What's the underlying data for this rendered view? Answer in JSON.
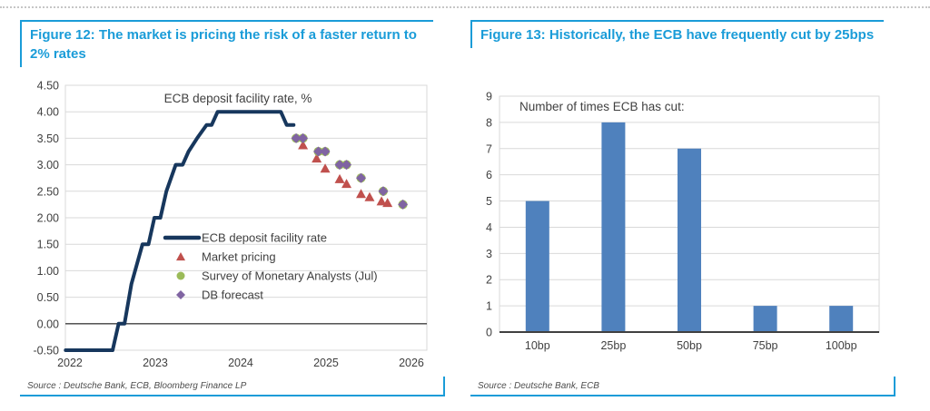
{
  "figure12": {
    "title": "Figure 12: The market is pricing the risk of a faster return to 2% rates",
    "source": "Source : Deutsche Bank, ECB, Bloomberg Finance LP"
  },
  "figure13": {
    "title": "Figure 13: Historically, the ECB have frequently cut by 25bps",
    "source": "Source : Deutsche Bank, ECB"
  },
  "colors": {
    "accent_blue": "#1a9cd8",
    "line_navy": "#17375D",
    "market_red": "#C0504D",
    "survey_green": "#9BBB59",
    "forecast_purple": "#8064A2",
    "bar_blue": "#4F81BD",
    "axis_text": "#404040",
    "gridline": "#d9d9d9"
  },
  "chart_data": [
    {
      "type": "line",
      "figure": "Figure 12",
      "inner_title": "ECB deposit facility rate, %",
      "xlabel": "",
      "ylabel": "",
      "xlim": [
        2021.947,
        2026.181
      ],
      "ylim": [
        -0.5,
        4.5
      ],
      "grid": true,
      "legend_position": "inside-lower-middle",
      "x_ticks": [
        "2022",
        "2023",
        "2024",
        "2025",
        "2026"
      ],
      "x_tick_pos": [
        2022,
        2023,
        2024,
        2025,
        2026
      ],
      "y_ticks": [
        "4.50",
        "4.00",
        "3.50",
        "3.00",
        "2.50",
        "2.00",
        "1.50",
        "1.00",
        "0.50",
        "0.00",
        "-0.50"
      ],
      "series": [
        {
          "name": "ECB deposit facility rate",
          "marker": "line",
          "color": "#17375D",
          "points": [
            [
              2021.95,
              -0.5
            ],
            [
              2022.5,
              -0.5
            ],
            [
              2022.57,
              0
            ],
            [
              2022.64,
              0
            ],
            [
              2022.72,
              0.75
            ],
            [
              2022.85,
              1.5
            ],
            [
              2022.92,
              1.5
            ],
            [
              2022.99,
              2
            ],
            [
              2023.06,
              2
            ],
            [
              2023.13,
              2.5
            ],
            [
              2023.24,
              3
            ],
            [
              2023.32,
              3
            ],
            [
              2023.39,
              3.25
            ],
            [
              2023.49,
              3.5
            ],
            [
              2023.6,
              3.75
            ],
            [
              2023.66,
              3.75
            ],
            [
              2023.73,
              4
            ],
            [
              2024.47,
              4
            ],
            [
              2024.54,
              3.75
            ],
            [
              2024.62,
              3.75
            ]
          ]
        },
        {
          "name": "Market pricing",
          "marker": "triangle",
          "color": "#C0504D",
          "points": [
            [
              2024.73,
              3.37
            ],
            [
              2024.89,
              3.12
            ],
            [
              2024.99,
              2.93
            ],
            [
              2025.16,
              2.73
            ],
            [
              2025.24,
              2.64
            ],
            [
              2025.41,
              2.45
            ],
            [
              2025.51,
              2.39
            ],
            [
              2025.65,
              2.31
            ],
            [
              2025.72,
              2.28
            ]
          ]
        },
        {
          "name": "Survey of Monetary Analysts (Jul)",
          "marker": "circle",
          "color": "#9BBB59",
          "points": [
            [
              2024.65,
              3.5
            ],
            [
              2024.73,
              3.5
            ],
            [
              2024.91,
              3.25
            ],
            [
              2024.99,
              3.25
            ],
            [
              2025.16,
              3
            ],
            [
              2025.24,
              3
            ],
            [
              2025.41,
              2.75
            ],
            [
              2025.67,
              2.5
            ],
            [
              2025.9,
              2.25
            ]
          ]
        },
        {
          "name": "DB forecast",
          "marker": "diamond",
          "color": "#8064A2",
          "points": [
            [
              2024.65,
              3.5
            ],
            [
              2024.73,
              3.5
            ],
            [
              2024.91,
              3.25
            ],
            [
              2024.99,
              3.25
            ],
            [
              2025.16,
              3
            ],
            [
              2025.24,
              3
            ],
            [
              2025.41,
              2.75
            ],
            [
              2025.67,
              2.5
            ],
            [
              2025.9,
              2.25
            ]
          ]
        }
      ]
    },
    {
      "type": "bar",
      "figure": "Figure 13",
      "inner_title": "Number of times ECB has cut:",
      "xlabel": "",
      "ylabel": "",
      "categories": [
        "10bp",
        "25bp",
        "50bp",
        "75bp",
        "100bp"
      ],
      "values": [
        5,
        8,
        7,
        1,
        1
      ],
      "ylim": [
        0,
        9
      ],
      "y_ticks": [
        "9",
        "8",
        "7",
        "6",
        "5",
        "4",
        "3",
        "2",
        "1",
        "0"
      ],
      "bar_color": "#4F81BD",
      "grid": true,
      "legend_position": "none"
    }
  ]
}
